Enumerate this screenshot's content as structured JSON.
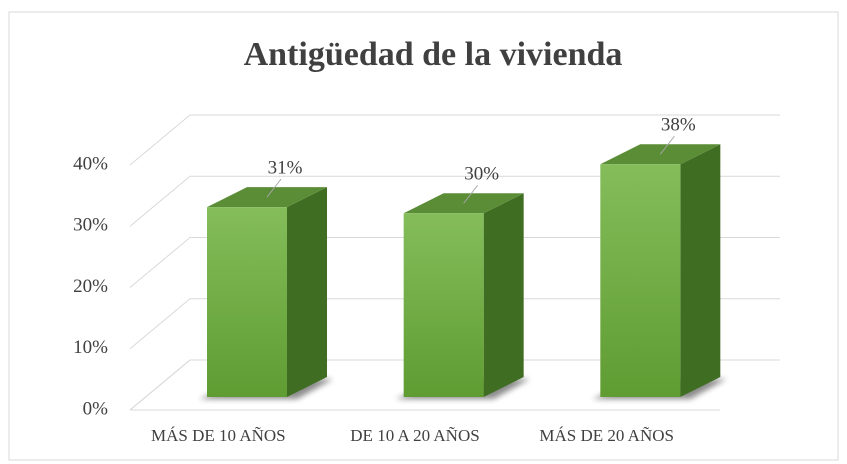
{
  "chart_data": {
    "type": "bar3d",
    "title": "Antigüedad de la vivienda",
    "categories": [
      "MÁS DE 10 AÑOS",
      "DE 10 A 20 AÑOS",
      "MÁS DE 20 AÑOS"
    ],
    "values": [
      31,
      30,
      38
    ],
    "value_labels": [
      "31%",
      "30%",
      "38%"
    ],
    "color": "#70ad47",
    "ylim": [
      0,
      40
    ],
    "yticks": [
      {
        "value": 0,
        "label": "0%"
      },
      {
        "value": 10,
        "label": "10%"
      },
      {
        "value": 20,
        "label": "20%"
      },
      {
        "value": 30,
        "label": "30%"
      },
      {
        "value": 40,
        "label": "40%"
      }
    ],
    "grid": true
  }
}
